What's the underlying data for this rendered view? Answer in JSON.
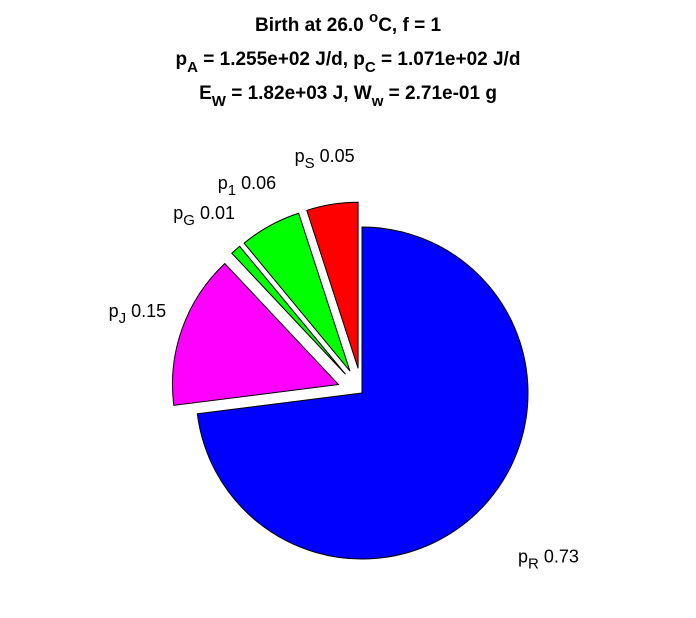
{
  "chart_data": {
    "type": "pie",
    "title": [
      [
        {
          "text": "Birth at 26.0 "
        },
        {
          "text": "o",
          "pos": "sup"
        },
        {
          "text": "C, f = 1"
        }
      ],
      [
        {
          "text": "p"
        },
        {
          "text": "A",
          "pos": "sub"
        },
        {
          "text": " = 1.255e+02 J/d, p"
        },
        {
          "text": "C",
          "pos": "sub"
        },
        {
          "text": " = 1.071e+02 J/d"
        }
      ],
      [
        {
          "text": "E"
        },
        {
          "text": "W",
          "pos": "sub"
        },
        {
          "text": " = 1.82e+03 J, W"
        },
        {
          "text": "w",
          "pos": "sub"
        },
        {
          "text": " = 2.71e-01 g"
        }
      ]
    ],
    "categories": [
      {
        "base": "p",
        "sub": "S"
      },
      {
        "base": "p",
        "sub": "1"
      },
      {
        "base": "p",
        "sub": "G"
      },
      {
        "base": "p",
        "sub": "J"
      },
      {
        "base": "p",
        "sub": "R"
      }
    ],
    "values": [
      0.05,
      0.06,
      0.01,
      0.15,
      0.73
    ],
    "colors": [
      "#ff0000",
      "#00ff00",
      "#00ff00",
      "#ff00ff",
      "#0000ff"
    ],
    "explode": [
      true,
      true,
      true,
      true,
      false
    ]
  }
}
